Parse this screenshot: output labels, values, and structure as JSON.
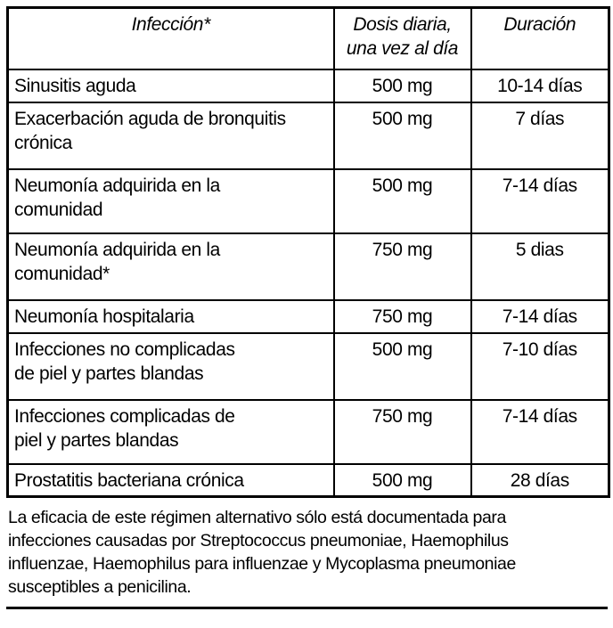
{
  "table": {
    "headers": {
      "infection": "Infección*",
      "dose": "Dosis diaria,\nuna vez al día",
      "duration": "Duración"
    },
    "rows": [
      {
        "infection": "Sinusitis aguda",
        "dose": "500 mg",
        "duration": "10-14 días"
      },
      {
        "infection": "Exacerbación aguda de bronquitis\ncrónica",
        "dose": "500 mg",
        "duration": "7 días"
      },
      {
        "infection": "Neumonía adquirida en la\ncomunidad",
        "dose": "500 mg",
        "duration": "7-14 días"
      },
      {
        "infection": "Neumonía adquirida en la\ncomunidad*",
        "dose": "750 mg",
        "duration": "5 dias"
      },
      {
        "infection": "Neumonía hospitalaria",
        "dose": "750 mg",
        "duration": "7-14 días"
      },
      {
        "infection": "Infecciones no complicadas\nde piel y partes blandas",
        "dose": "500 mg",
        "duration": "7-10 días"
      },
      {
        "infection": "Infecciones complicadas de\npiel y partes blandas",
        "dose": "750 mg",
        "duration": "7-14 días"
      },
      {
        "infection": "Prostatitis bacteriana crónica",
        "dose": "500 mg",
        "duration": "28 días"
      }
    ]
  },
  "footnote": {
    "text": "La eficacia de este régimen alternativo sólo está documentada para\ninfecciones causadas por Streptococcus pneumoniae, Haemophilus\ninfluenzae, Haemophilus para influenzae y Mycoplasma pneumoniae\nsusceptibles a penicilina."
  },
  "colors": {
    "border": "#000000",
    "text": "#000000",
    "background": "#ffffff"
  }
}
